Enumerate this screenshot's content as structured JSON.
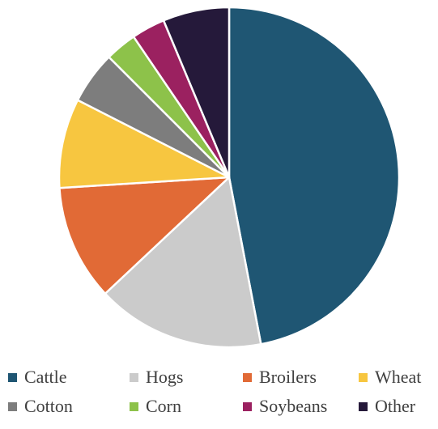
{
  "chart_data": {
    "type": "pie",
    "title": "",
    "legend_position": "bottom",
    "categories": [
      "Cattle",
      "Hogs",
      "Broilers",
      "Wheat",
      "Cotton",
      "Corn",
      "Soybeans",
      "Other"
    ],
    "values": [
      47,
      16,
      11,
      8.5,
      5,
      3,
      3.2,
      6.3
    ],
    "unit": "percent",
    "colors": [
      "#1f5673",
      "#cbcbcb",
      "#e16a36",
      "#f7c640",
      "#7d7d7d",
      "#8dc24a",
      "#9b2160",
      "#25193a"
    ],
    "start_angle_deg": 0,
    "direction": "clockwise"
  }
}
